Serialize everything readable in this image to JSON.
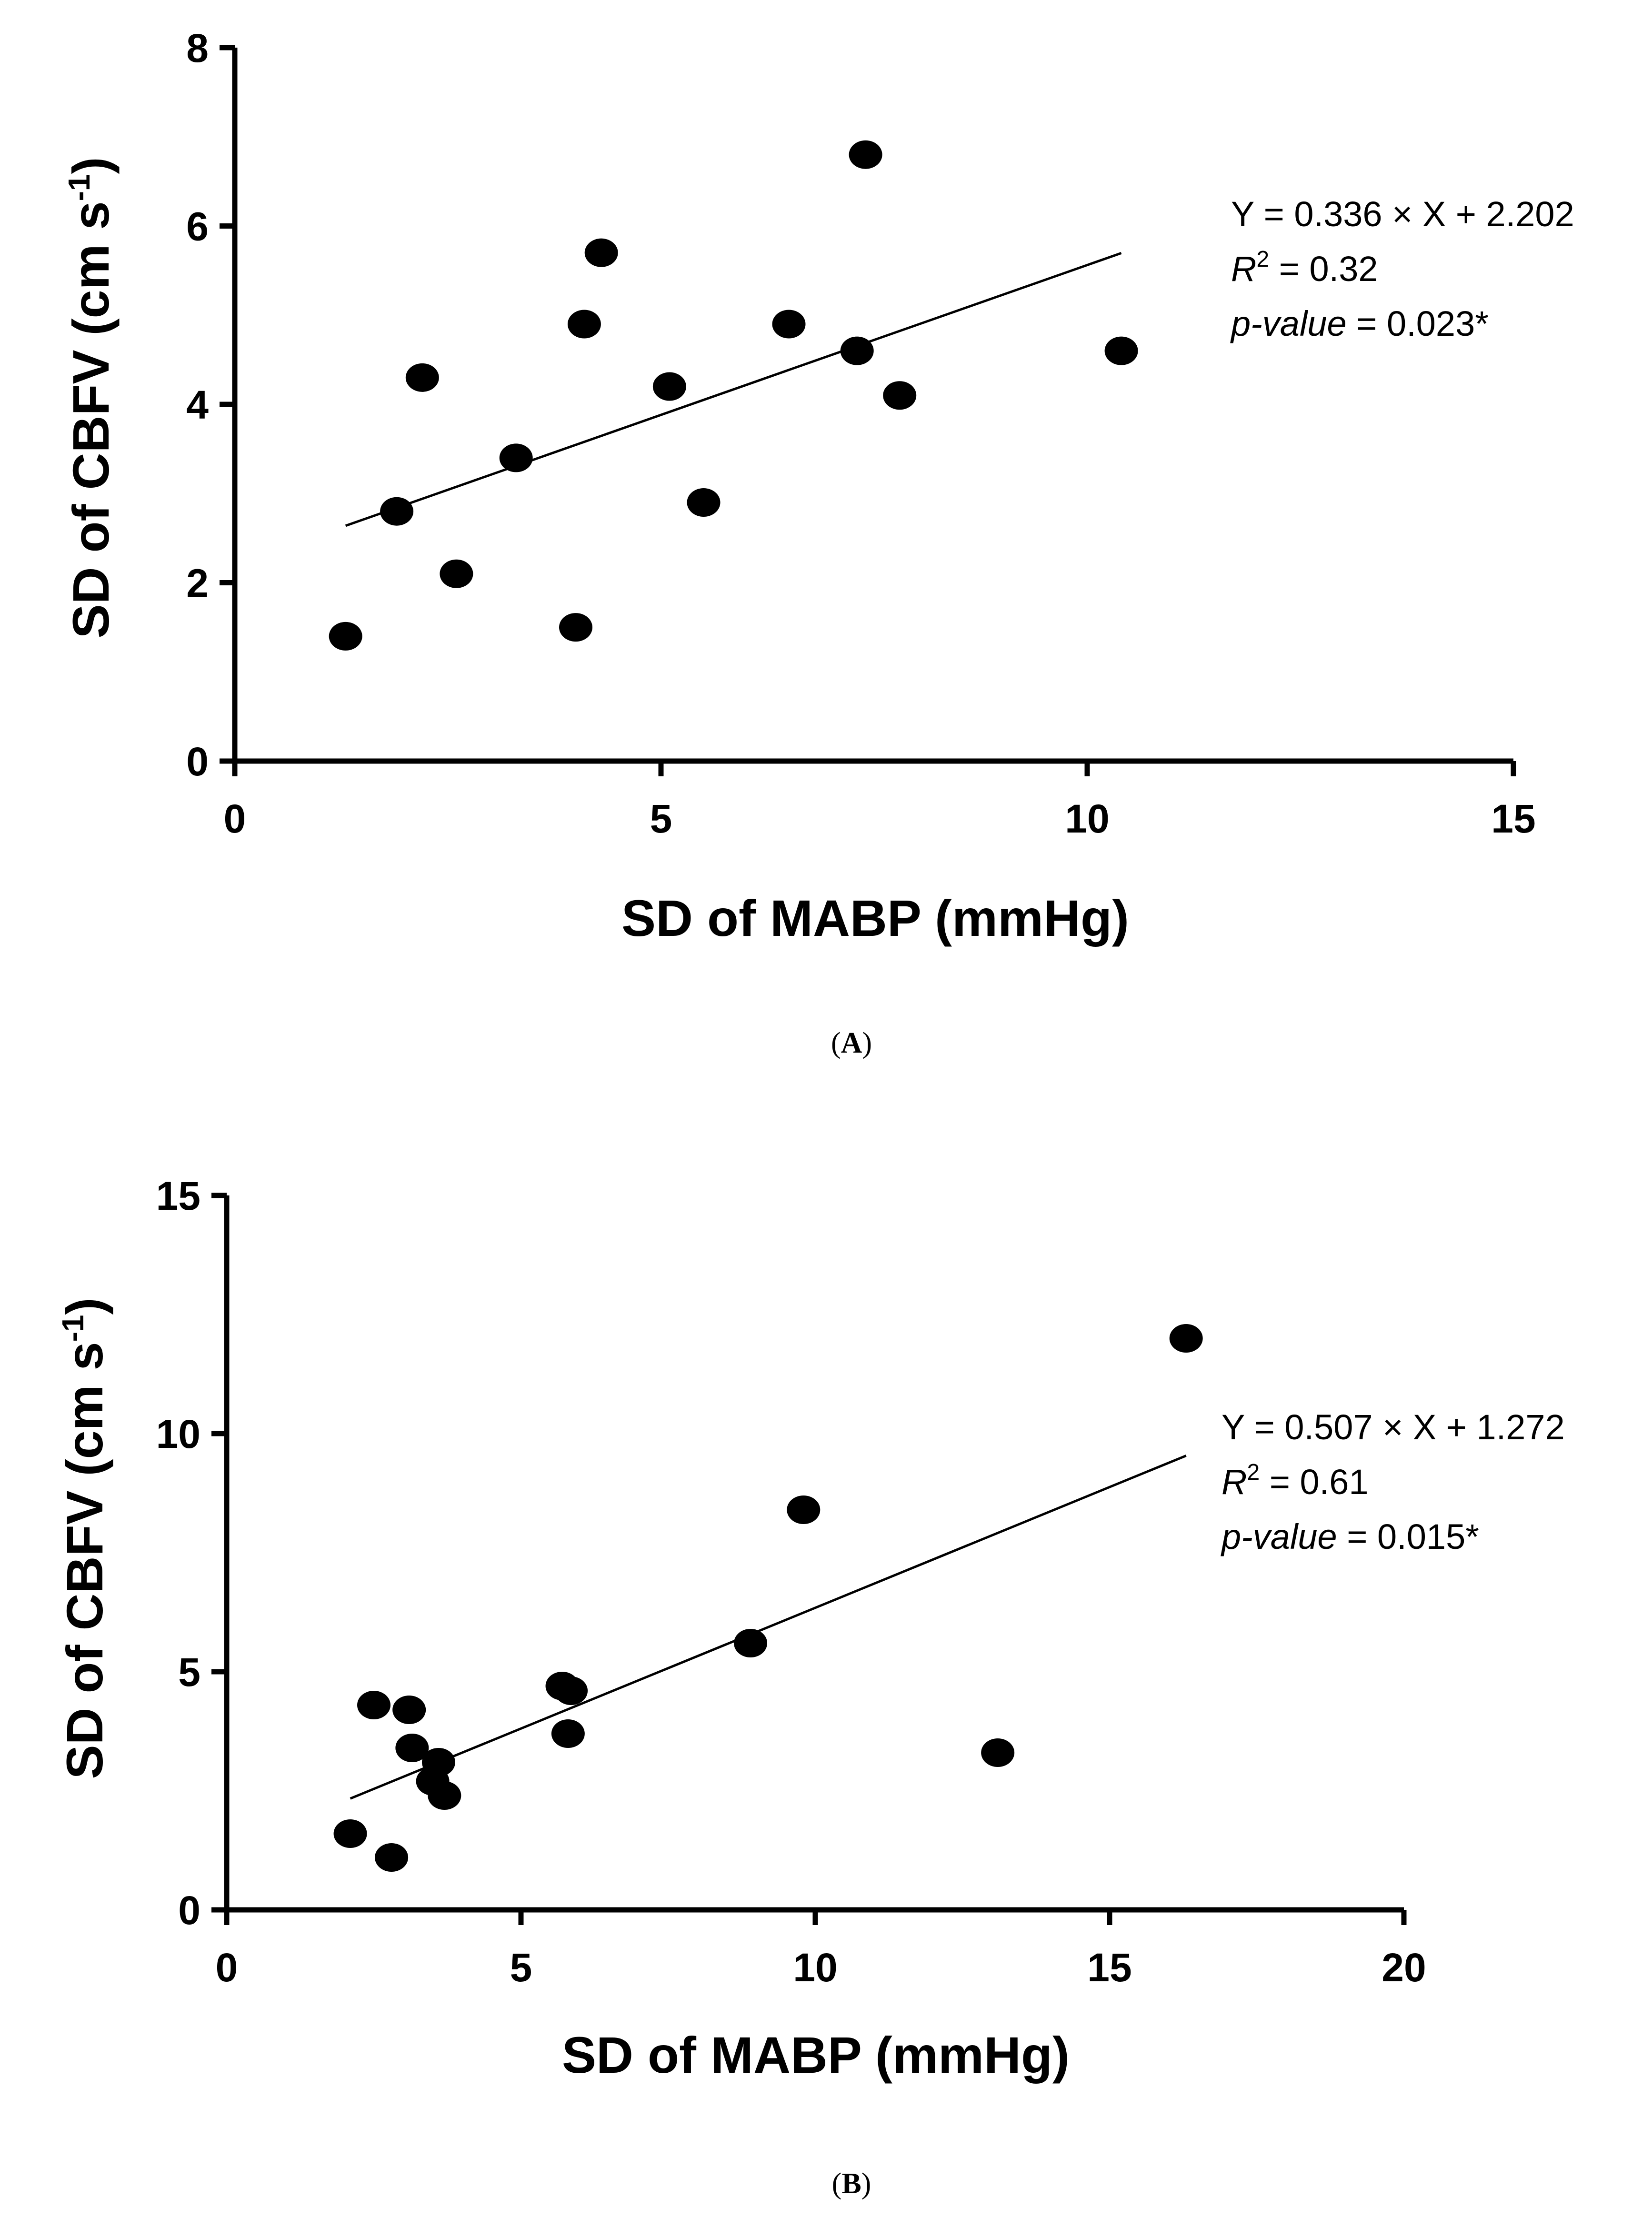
{
  "chart_data": [
    {
      "type": "scatter",
      "panel_label_parts": [
        "(",
        "A",
        ")"
      ],
      "xlabel": "SD of MABP (mmHg)",
      "ylabel_parts": [
        "SD of CBFV (cm s",
        "-1",
        ")"
      ],
      "xlim": [
        0,
        15
      ],
      "ylim": [
        0,
        8
      ],
      "xticks": [
        0,
        5,
        10,
        15
      ],
      "yticks": [
        0,
        2,
        4,
        6,
        8
      ],
      "x": [
        1.3,
        1.9,
        2.2,
        2.6,
        3.3,
        4.0,
        4.1,
        4.3,
        5.1,
        5.5,
        6.5,
        7.3,
        7.4,
        7.8,
        10.4
      ],
      "y": [
        1.4,
        2.8,
        4.3,
        2.1,
        3.4,
        1.5,
        4.9,
        5.7,
        4.2,
        2.9,
        4.9,
        4.6,
        6.8,
        4.1,
        4.6
      ],
      "fit": {
        "slope": 0.336,
        "intercept": 2.202,
        "x_range": [
          1.3,
          10.4
        ]
      },
      "annotation": {
        "equation": "Y = 0.336 × X + 2.202",
        "r2_symbol": "R",
        "r2_exp": "2",
        "r2_rest": " = 0.32",
        "p_label": "p-value",
        "p_rest": " = 0.023*"
      }
    },
    {
      "type": "scatter",
      "panel_label_parts": [
        "(",
        "B",
        ")"
      ],
      "xlabel": "SD of MABP (mmHg)",
      "ylabel_parts": [
        "SD of CBFV (cm s",
        "-1",
        ")"
      ],
      "xlim": [
        0,
        20
      ],
      "ylim": [
        0,
        15
      ],
      "xticks": [
        0,
        5,
        10,
        15,
        20
      ],
      "yticks": [
        0,
        5,
        10,
        15
      ],
      "x": [
        2.1,
        2.5,
        2.8,
        3.1,
        3.15,
        3.5,
        3.6,
        3.7,
        5.7,
        5.8,
        5.85,
        8.9,
        9.8,
        13.1,
        16.3
      ],
      "y": [
        1.6,
        4.3,
        1.1,
        4.2,
        3.4,
        2.7,
        3.1,
        2.4,
        4.7,
        3.7,
        4.6,
        5.6,
        8.4,
        3.3,
        12.0
      ],
      "fit": {
        "slope": 0.507,
        "intercept": 1.272,
        "x_range": [
          2.1,
          16.3
        ]
      },
      "annotation": {
        "equation": "Y = 0.507 × X + 1.272",
        "r2_symbol": "R",
        "r2_exp": "2",
        "r2_rest": " = 0.61",
        "p_label": "p-value",
        "p_rest": " = 0.015*"
      }
    }
  ]
}
